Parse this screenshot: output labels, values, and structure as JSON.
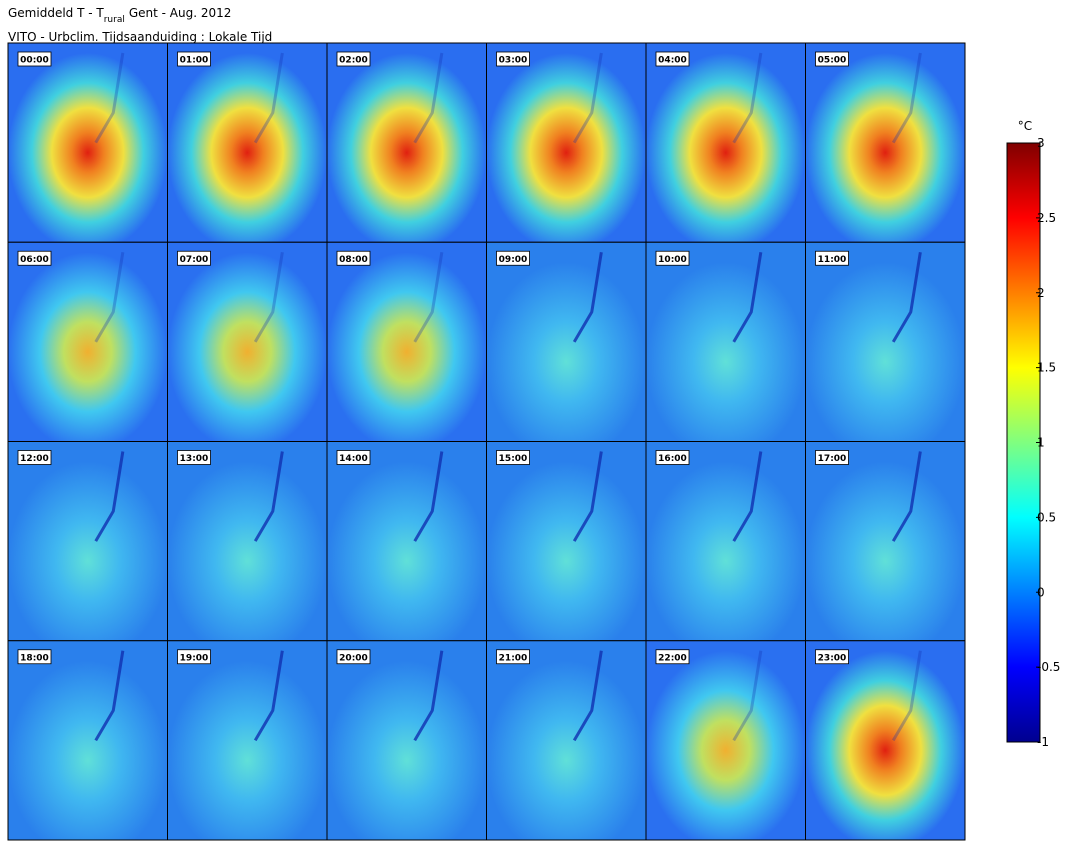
{
  "header": {
    "title_prefix": "Gemiddeld T - T",
    "title_subscript": "rural",
    "title_suffix": "Gent - Aug. 2012",
    "subtitle": "VITO - Urbclim. Tijdsaanduiding : Lokale Tijd"
  },
  "panels": [
    "00:00",
    "01:00",
    "02:00",
    "03:00",
    "04:00",
    "05:00",
    "06:00",
    "07:00",
    "08:00",
    "09:00",
    "10:00",
    "11:00",
    "12:00",
    "13:00",
    "14:00",
    "15:00",
    "16:00",
    "17:00",
    "18:00",
    "19:00",
    "20:00",
    "21:00",
    "22:00",
    "23:00"
  ],
  "colorbar": {
    "unit": "°C",
    "lim": [
      -1,
      3
    ],
    "ticks": [
      -1,
      -0.5,
      0,
      0.5,
      1,
      1.5,
      2,
      2.5,
      3
    ]
  }
}
